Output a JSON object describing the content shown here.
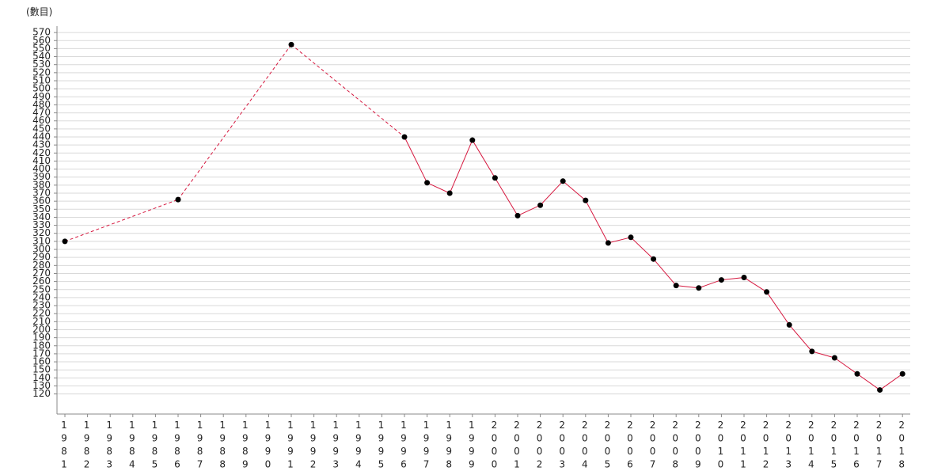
{
  "chart_data": {
    "type": "line",
    "y_axis_label": "(數目)",
    "categories": [
      "1981",
      "1982",
      "1983",
      "1984",
      "1985",
      "1986",
      "1987",
      "1988",
      "1989",
      "1990",
      "1991",
      "1992",
      "1993",
      "1994",
      "1995",
      "1996",
      "1997",
      "1998",
      "1999",
      "2000",
      "2001",
      "2002",
      "2003",
      "2004",
      "2005",
      "2006",
      "2007",
      "2008",
      "2009",
      "2010",
      "2011",
      "2012",
      "2013",
      "2014",
      "2015",
      "2016",
      "2017",
      "2018"
    ],
    "series": [
      {
        "color": "#d6183f",
        "marker_color": "#000000",
        "values": [
          310,
          null,
          null,
          null,
          null,
          362,
          null,
          null,
          null,
          null,
          555,
          null,
          null,
          null,
          null,
          440,
          383,
          370,
          436,
          389,
          342,
          355,
          385,
          361,
          308,
          315,
          288,
          255,
          252,
          262,
          265,
          247,
          206,
          173,
          165,
          145,
          125,
          145
        ]
      }
    ],
    "ylim": [
      95,
      578
    ],
    "yticks": [
      120,
      130,
      140,
      150,
      160,
      170,
      180,
      190,
      200,
      210,
      220,
      230,
      240,
      250,
      260,
      270,
      280,
      290,
      300,
      310,
      320,
      330,
      340,
      350,
      360,
      370,
      380,
      390,
      400,
      410,
      420,
      430,
      440,
      450,
      460,
      470,
      480,
      490,
      500,
      510,
      520,
      530,
      540,
      550,
      560,
      570
    ],
    "grid": true
  }
}
